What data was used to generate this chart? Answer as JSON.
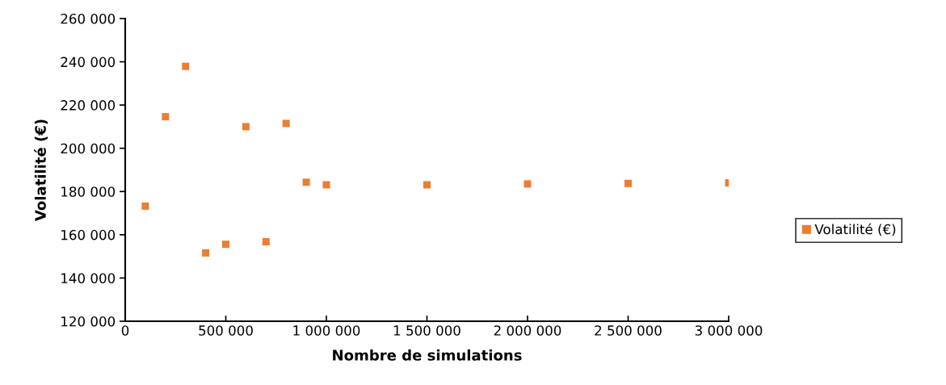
{
  "chart_data": {
    "type": "scatter",
    "xlabel": "Nombre de simulations",
    "ylabel": "Volatilité (€)",
    "x": [
      100000,
      200000,
      300000,
      400000,
      500000,
      600000,
      700000,
      800000,
      900000,
      1000000,
      1500000,
      2000000,
      2500000,
      3000000
    ],
    "series": [
      {
        "name": "Volatilité (€)",
        "color": "#ed7d31",
        "values": [
          173250,
          214600,
          237900,
          151600,
          155600,
          210000,
          156750,
          211500,
          184300,
          183100,
          183100,
          183500,
          183750,
          184000
        ]
      }
    ],
    "xlim": [
      0,
      3000000
    ],
    "xticks": [
      0,
      {
        "value": 500000,
        "label": "500 000"
      },
      {
        "value": 1000000,
        "label": "1 000 000"
      },
      {
        "value": 1500000,
        "label": "1 500 000"
      },
      {
        "value": 2000000,
        "label": "2 000 000"
      },
      {
        "value": 2500000,
        "label": "2 500 000"
      },
      {
        "value": 3000000,
        "label": "3 000 000"
      }
    ],
    "ylim": [
      120000,
      260000
    ],
    "yticks": [
      {
        "value": 120000,
        "label": "120 000"
      },
      {
        "value": 140000,
        "label": "140 000"
      },
      {
        "value": 160000,
        "label": "160 000"
      },
      {
        "value": 180000,
        "label": "180 000"
      },
      {
        "value": 200000,
        "label": "200 000"
      },
      {
        "value": 220000,
        "label": "220 000"
      },
      {
        "value": 240000,
        "label": "240 000"
      },
      {
        "value": 260000,
        "label": "260 000"
      }
    ],
    "grid": false,
    "legend": "right",
    "marker": "square"
  }
}
